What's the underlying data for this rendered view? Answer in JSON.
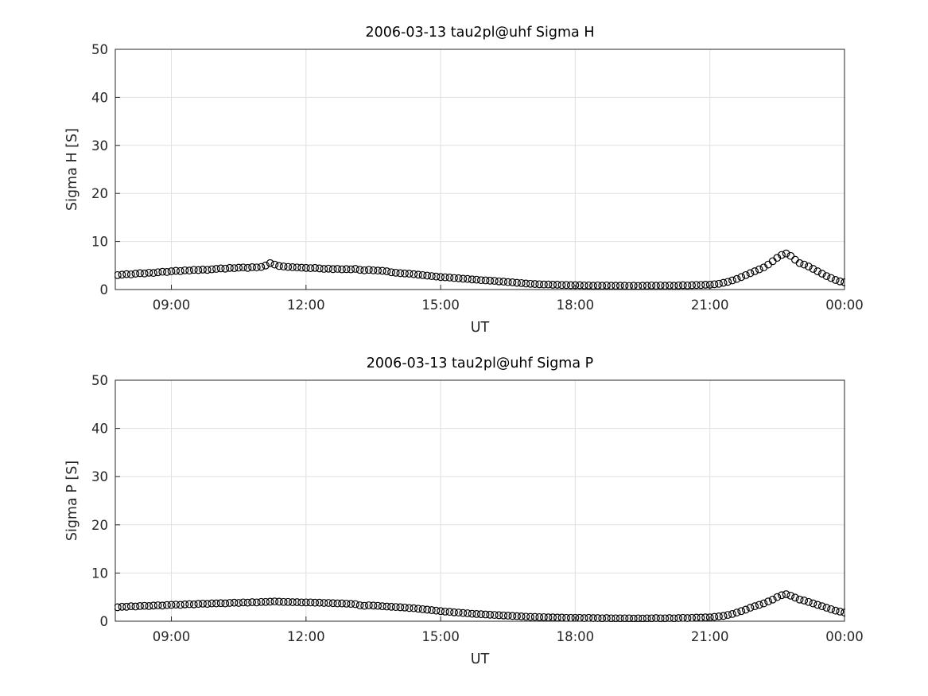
{
  "figure": {
    "background": "#ffffff",
    "axes_color": "#262626",
    "grid_color": "#e0e0e0",
    "marker_color": "#000000"
  },
  "chart_data": [
    {
      "type": "scatter",
      "title": "2006-03-13  tau2pl@uhf Sigma H",
      "xlabel": "UT",
      "ylabel": "Sigma H [S]",
      "xlim": [
        7.75,
        24
      ],
      "ylim": [
        0,
        50
      ],
      "x_ticks": [
        9,
        12,
        15,
        18,
        21,
        24
      ],
      "x_tick_labels": [
        "09:00",
        "12:00",
        "15:00",
        "18:00",
        "21:00",
        "00:00"
      ],
      "y_ticks": [
        0,
        10,
        20,
        30,
        40,
        50
      ],
      "grid": true,
      "legend": "none",
      "marker": "open-circle",
      "x_unit": "hours UT",
      "t_start_hour": 7.8,
      "t_step_hours": 0.1,
      "values": [
        3.0,
        3.1,
        3.2,
        3.15,
        3.3,
        3.4,
        3.35,
        3.5,
        3.45,
        3.6,
        3.7,
        3.65,
        3.8,
        3.9,
        3.85,
        4.0,
        3.95,
        4.1,
        4.05,
        4.15,
        4.1,
        4.2,
        4.3,
        4.4,
        4.35,
        4.5,
        4.45,
        4.55,
        4.6,
        4.5,
        4.65,
        4.6,
        4.7,
        5.0,
        5.5,
        5.2,
        4.9,
        4.8,
        4.7,
        4.65,
        4.6,
        4.55,
        4.5,
        4.45,
        4.5,
        4.4,
        4.3,
        4.35,
        4.25,
        4.3,
        4.2,
        4.25,
        4.2,
        4.3,
        4.1,
        4.0,
        4.1,
        4.0,
        3.95,
        3.9,
        3.8,
        3.6,
        3.5,
        3.4,
        3.35,
        3.3,
        3.2,
        3.1,
        3.0,
        2.9,
        2.8,
        2.7,
        2.6,
        2.55,
        2.5,
        2.4,
        2.35,
        2.25,
        2.2,
        2.1,
        2.05,
        1.95,
        1.9,
        1.85,
        1.8,
        1.7,
        1.65,
        1.55,
        1.5,
        1.4,
        1.35,
        1.25,
        1.2,
        1.15,
        1.1,
        1.05,
        1.05,
        1.0,
        1.0,
        0.95,
        0.95,
        0.9,
        0.9,
        0.9,
        0.85,
        0.85,
        0.8,
        0.85,
        0.8,
        0.85,
        0.8,
        0.8,
        0.8,
        0.8,
        0.75,
        0.8,
        0.75,
        0.8,
        0.8,
        0.85,
        0.8,
        0.85,
        0.8,
        0.85,
        0.8,
        0.85,
        0.9,
        0.85,
        0.9,
        0.95,
        0.95,
        1.0,
        1.0,
        1.1,
        1.2,
        1.4,
        1.6,
        1.9,
        2.2,
        2.6,
        3.0,
        3.4,
        3.8,
        4.2,
        4.6,
        5.2,
        5.9,
        6.6,
        7.2,
        7.5,
        7.0,
        6.2,
        5.5,
        5.2,
        4.8,
        4.3,
        3.8,
        3.3,
        2.8,
        2.4,
        2.0,
        1.7,
        1.5
      ]
    },
    {
      "type": "scatter",
      "title": "2006-03-13  tau2pl@uhf Sigma P",
      "xlabel": "UT",
      "ylabel": "Sigma P [S]",
      "xlim": [
        7.75,
        24
      ],
      "ylim": [
        0,
        50
      ],
      "x_ticks": [
        9,
        12,
        15,
        18,
        21,
        24
      ],
      "x_tick_labels": [
        "09:00",
        "12:00",
        "15:00",
        "18:00",
        "21:00",
        "00:00"
      ],
      "y_ticks": [
        0,
        10,
        20,
        30,
        40,
        50
      ],
      "grid": true,
      "legend": "none",
      "marker": "open-circle",
      "x_unit": "hours UT",
      "t_start_hour": 7.8,
      "t_step_hours": 0.1,
      "values": [
        2.9,
        3.0,
        3.0,
        3.1,
        3.05,
        3.15,
        3.2,
        3.15,
        3.25,
        3.3,
        3.25,
        3.35,
        3.4,
        3.45,
        3.4,
        3.5,
        3.55,
        3.5,
        3.6,
        3.65,
        3.6,
        3.7,
        3.7,
        3.75,
        3.7,
        3.8,
        3.85,
        3.8,
        3.9,
        3.85,
        3.95,
        3.9,
        4.0,
        4.0,
        4.05,
        4.1,
        4.05,
        4.0,
        4.0,
        3.95,
        3.95,
        3.9,
        3.9,
        3.9,
        3.85,
        3.85,
        3.8,
        3.8,
        3.75,
        3.7,
        3.7,
        3.65,
        3.6,
        3.55,
        3.3,
        3.2,
        3.3,
        3.25,
        3.2,
        3.1,
        3.05,
        3.0,
        2.95,
        2.9,
        2.85,
        2.75,
        2.7,
        2.6,
        2.5,
        2.4,
        2.3,
        2.2,
        2.1,
        2.0,
        1.95,
        1.85,
        1.8,
        1.7,
        1.65,
        1.55,
        1.5,
        1.45,
        1.4,
        1.35,
        1.3,
        1.25,
        1.2,
        1.15,
        1.1,
        1.05,
        1.0,
        0.95,
        0.9,
        0.9,
        0.85,
        0.85,
        0.8,
        0.8,
        0.75,
        0.75,
        0.7,
        0.7,
        0.7,
        0.7,
        0.65,
        0.7,
        0.65,
        0.65,
        0.6,
        0.65,
        0.6,
        0.6,
        0.6,
        0.6,
        0.6,
        0.55,
        0.6,
        0.55,
        0.6,
        0.6,
        0.65,
        0.6,
        0.6,
        0.65,
        0.6,
        0.65,
        0.7,
        0.65,
        0.7,
        0.75,
        0.75,
        0.8,
        0.8,
        0.9,
        1.0,
        1.1,
        1.3,
        1.5,
        1.8,
        2.1,
        2.4,
        2.8,
        3.1,
        3.4,
        3.7,
        4.1,
        4.5,
        5.0,
        5.4,
        5.6,
        5.3,
        4.9,
        4.5,
        4.3,
        4.0,
        3.7,
        3.4,
        3.1,
        2.8,
        2.5,
        2.2,
        2.0,
        1.8
      ]
    }
  ]
}
